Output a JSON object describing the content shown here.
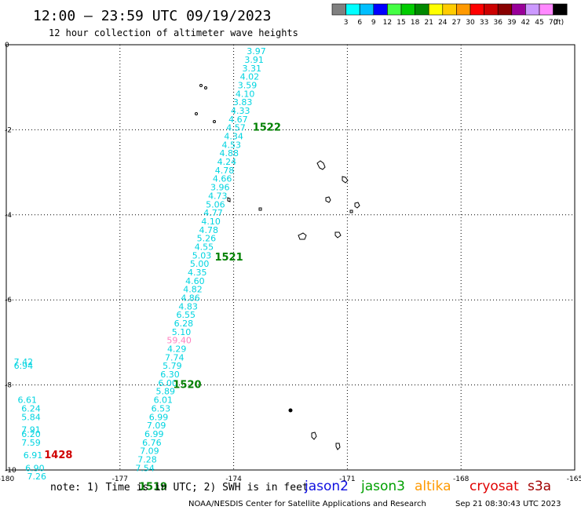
{
  "header": {
    "title": "12:00 — 23:59 UTC 09/19/2023",
    "subtitle": "12 hour collection of altimeter wave heights"
  },
  "colorbar": {
    "unit": "(ft)",
    "colors": [
      "#808080",
      "#00ffff",
      "#00bfff",
      "#0000ff",
      "#44ff44",
      "#00cc00",
      "#008800",
      "#ffff00",
      "#ffcc00",
      "#ff9900",
      "#ff0000",
      "#cc0000",
      "#880000",
      "#990099",
      "#cc99ff",
      "#ff88ff",
      "#000000"
    ],
    "labels": [
      "3",
      "6",
      "9",
      "12",
      "15",
      "18",
      "21",
      "24",
      "27",
      "30",
      "33",
      "36",
      "39",
      "42",
      "45",
      "70"
    ]
  },
  "chart_data": {
    "type": "scatter",
    "title": "12:00 — 23:59 UTC 09/19/2023",
    "subtitle": "12 hour collection of altimeter wave heights",
    "xlim": [
      -180,
      -165
    ],
    "ylim": [
      -10,
      0
    ],
    "x_ticks": [
      "-180",
      "-177",
      "-174",
      "-171",
      "-168",
      "-165"
    ],
    "y_ticks": [
      "0",
      "-2",
      "-4",
      "-6",
      "-8",
      "-10"
    ],
    "grid": true,
    "track_colors": {
      "pass": "#008000",
      "pass_old": "#d00000",
      "swh": "#00d4e0",
      "swh_high": "#ff80c0"
    },
    "main_track": [
      {
        "x": -173.4,
        "y": -0.15,
        "v": "3.97"
      },
      {
        "x": -173.46,
        "y": -0.35,
        "v": "3.91"
      },
      {
        "x": -173.52,
        "y": -0.55,
        "v": "3.31"
      },
      {
        "x": -173.58,
        "y": -0.75,
        "v": "4.02"
      },
      {
        "x": -173.64,
        "y": -0.95,
        "v": "3.59"
      },
      {
        "x": -173.7,
        "y": -1.15,
        "v": "4.10"
      },
      {
        "x": -173.76,
        "y": -1.35,
        "v": "3.83"
      },
      {
        "x": -173.82,
        "y": -1.55,
        "v": "4.33"
      },
      {
        "x": -173.88,
        "y": -1.75,
        "v": "4.67"
      },
      {
        "x": -173.94,
        "y": -1.95,
        "v": "4.57"
      },
      {
        "x": -174.0,
        "y": -2.15,
        "v": "4.34"
      },
      {
        "x": -174.06,
        "y": -2.35,
        "v": "4.53"
      },
      {
        "x": -174.12,
        "y": -2.55,
        "v": "4.88"
      },
      {
        "x": -174.18,
        "y": -2.75,
        "v": "4.24"
      },
      {
        "x": -174.24,
        "y": -2.95,
        "v": "4.78"
      },
      {
        "x": -174.3,
        "y": -3.15,
        "v": "4.66"
      },
      {
        "x": -174.36,
        "y": -3.35,
        "v": "3.96"
      },
      {
        "x": -174.42,
        "y": -3.55,
        "v": "4.73"
      },
      {
        "x": -174.48,
        "y": -3.75,
        "v": "5.06"
      },
      {
        "x": -174.54,
        "y": -3.95,
        "v": "4.77"
      },
      {
        "x": -174.6,
        "y": -4.15,
        "v": "4.10"
      },
      {
        "x": -174.66,
        "y": -4.35,
        "v": "4.78"
      },
      {
        "x": -174.72,
        "y": -4.55,
        "v": "5.26"
      },
      {
        "x": -174.78,
        "y": -4.75,
        "v": "4.55"
      },
      {
        "x": -174.84,
        "y": -4.95,
        "v": "5.03"
      },
      {
        "x": -174.9,
        "y": -5.15,
        "v": "5.00"
      },
      {
        "x": -174.96,
        "y": -5.35,
        "v": "4.35"
      },
      {
        "x": -175.02,
        "y": -5.55,
        "v": "4.60"
      },
      {
        "x": -175.08,
        "y": -5.75,
        "v": "4.82"
      },
      {
        "x": -175.14,
        "y": -5.95,
        "v": "4.86"
      },
      {
        "x": -175.2,
        "y": -6.15,
        "v": "4.83"
      },
      {
        "x": -175.26,
        "y": -6.35,
        "v": "6.55"
      },
      {
        "x": -175.32,
        "y": -6.55,
        "v": "6.28"
      },
      {
        "x": -175.38,
        "y": -6.75,
        "v": "5.10"
      },
      {
        "x": -175.44,
        "y": -6.95,
        "v": "59.40",
        "hi": true
      },
      {
        "x": -175.5,
        "y": -7.15,
        "v": "4.29"
      },
      {
        "x": -175.56,
        "y": -7.35,
        "v": "7.74"
      },
      {
        "x": -175.62,
        "y": -7.55,
        "v": "5.79"
      },
      {
        "x": -175.68,
        "y": -7.75,
        "v": "6.30"
      },
      {
        "x": -175.74,
        "y": -7.95,
        "v": "6.00"
      },
      {
        "x": -175.8,
        "y": -8.15,
        "v": "5.89"
      },
      {
        "x": -175.86,
        "y": -8.35,
        "v": "6.01"
      },
      {
        "x": -175.92,
        "y": -8.55,
        "v": "6.53"
      },
      {
        "x": -175.98,
        "y": -8.75,
        "v": "6.99"
      },
      {
        "x": -176.04,
        "y": -8.95,
        "v": "7.09"
      },
      {
        "x": -176.1,
        "y": -9.15,
        "v": "6.99"
      },
      {
        "x": -176.16,
        "y": -9.35,
        "v": "6.76"
      },
      {
        "x": -176.22,
        "y": -9.55,
        "v": "7.09"
      },
      {
        "x": -176.28,
        "y": -9.75,
        "v": "7.28"
      },
      {
        "x": -176.34,
        "y": -9.95,
        "v": "7.54"
      }
    ],
    "west_track": [
      {
        "x": -179.8,
        "y": -7.45,
        "v": "7.42"
      },
      {
        "x": -179.8,
        "y": -7.55,
        "v": "6.94"
      },
      {
        "x": -179.7,
        "y": -8.35,
        "v": "6.61"
      },
      {
        "x": -179.6,
        "y": -8.55,
        "v": "6.24"
      },
      {
        "x": -179.6,
        "y": -8.75,
        "v": "5.84"
      },
      {
        "x": -179.6,
        "y": -9.05,
        "v": "7.91"
      },
      {
        "x": -179.6,
        "y": -9.15,
        "v": "6.20"
      },
      {
        "x": -179.6,
        "y": -9.35,
        "v": "7.59"
      },
      {
        "x": -179.55,
        "y": -9.65,
        "v": "6.91"
      },
      {
        "x": -179.5,
        "y": -9.95,
        "v": "6.90"
      },
      {
        "x": -179.45,
        "y": -10.15,
        "v": "7.26"
      }
    ],
    "pass_labels": [
      {
        "x": -173.5,
        "y": -1.95,
        "v": "1522",
        "c": "#008000"
      },
      {
        "x": -174.5,
        "y": -5.0,
        "v": "1521",
        "c": "#008000"
      },
      {
        "x": -175.6,
        "y": -8.0,
        "v": "1520",
        "c": "#008000"
      },
      {
        "x": -176.5,
        "y": -10.4,
        "v": "1519",
        "c": "#008000"
      },
      {
        "x": -179.0,
        "y": -9.65,
        "v": "1428",
        "c": "#d00000"
      }
    ]
  },
  "footer": {
    "note": "note: 1) Time is in UTC; 2) SWH is in feet",
    "legend": [
      {
        "name": "jason2",
        "color": "#1010e0"
      },
      {
        "name": "jason3",
        "color": "#00a000"
      },
      {
        "name": "altika",
        "color": "#ff9900"
      },
      {
        "name": "cryosat",
        "color": "#e00000"
      },
      {
        "name": "s3a",
        "color": "#a00000"
      }
    ],
    "credit": "NOAA/NESDIS Center for Satellite Applications and Research",
    "timestamp": "Sep 21 08:30:43 UTC 2023"
  }
}
